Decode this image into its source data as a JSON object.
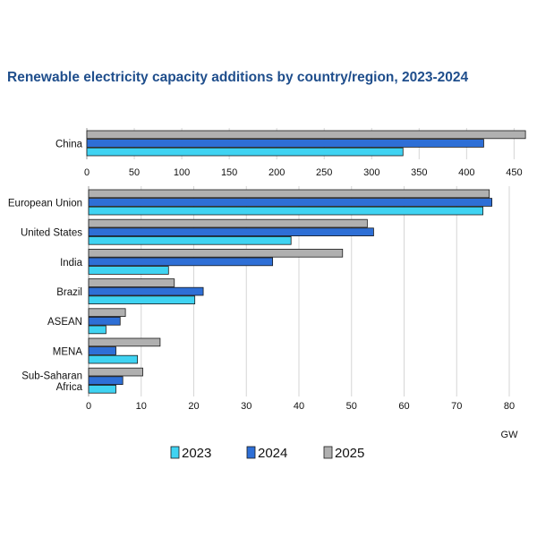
{
  "chart_data": {
    "type": "bar",
    "orientation": "horizontal",
    "title": "Renewable electricity capacity additions by country/region, 2023-2024",
    "unit": "GW",
    "series_names": [
      "2023",
      "2024",
      "2025"
    ],
    "colors": {
      "2023": "#3fd3f2",
      "2024": "#2e6fd6",
      "2025": "#b0b0b0"
    },
    "grid": true,
    "legend_position": "bottom",
    "panels": [
      {
        "id": "top",
        "xlim": [
          0,
          460
        ],
        "xticks": [
          0,
          50,
          100,
          150,
          200,
          250,
          300,
          350,
          400,
          450
        ],
        "categories": [
          {
            "label": [
              "China"
            ],
            "values": {
              "2023": 333,
              "2024": 418,
              "2025": 462
            }
          }
        ]
      },
      {
        "id": "bottom",
        "xlim": [
          0,
          80
        ],
        "xticks": [
          0,
          10,
          20,
          30,
          40,
          50,
          60,
          70,
          80
        ],
        "categories": [
          {
            "label": [
              "European Union"
            ],
            "values": {
              "2023": 75,
              "2024": 76.7,
              "2025": 76.2
            }
          },
          {
            "label": [
              "United States"
            ],
            "values": {
              "2023": 38.5,
              "2024": 54.2,
              "2025": 53
            }
          },
          {
            "label": [
              "India"
            ],
            "values": {
              "2023": 15.2,
              "2024": 35,
              "2025": 48.3
            }
          },
          {
            "label": [
              "Brazil"
            ],
            "values": {
              "2023": 20.2,
              "2024": 21.8,
              "2025": 16.3
            }
          },
          {
            "label": [
              "ASEAN"
            ],
            "values": {
              "2023": 3.3,
              "2024": 6,
              "2025": 7
            }
          },
          {
            "label": [
              "MENA"
            ],
            "values": {
              "2023": 9.3,
              "2024": 5.2,
              "2025": 13.6
            }
          },
          {
            "label": [
              "Sub-Saharan",
              "Africa"
            ],
            "values": {
              "2023": 5.2,
              "2024": 6.5,
              "2025": 10.3
            }
          }
        ]
      }
    ]
  }
}
